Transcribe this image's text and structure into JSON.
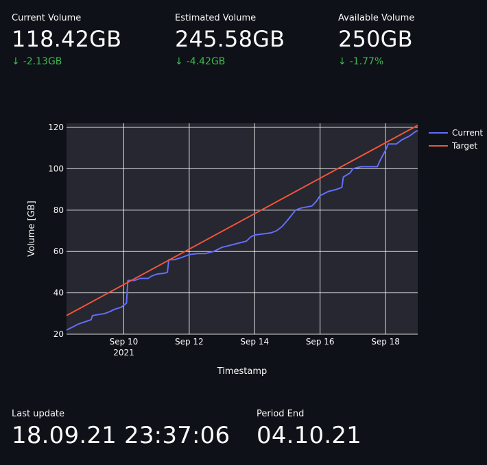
{
  "metrics": [
    {
      "label": "Current Volume",
      "value": "118.42GB",
      "delta": "-2.13GB"
    },
    {
      "label": "Estimated Volume",
      "value": "245.58GB",
      "delta": "-4.42GB"
    },
    {
      "label": "Available Volume",
      "value": "250GB",
      "delta": "-1.77%"
    }
  ],
  "footer": {
    "last_update_label": "Last update",
    "last_update_value": "18.09.21 23:37:06",
    "period_end_label": "Period End",
    "period_end_value": "04.10.21"
  },
  "colors": {
    "background": "#0e1117",
    "plot_bg": "#262730",
    "current": "#636efa",
    "target": "#ef553b",
    "delta_down": "#3fb950"
  },
  "chart_data": {
    "type": "line",
    "xlabel": "Timestamp",
    "ylabel": "Volume [GB]",
    "xlim": [
      "2021-09-08T06:00",
      "2021-09-18T23:37"
    ],
    "ylim": [
      20,
      122
    ],
    "x_ticks": [
      {
        "date": "2021-09-10",
        "label": "Sep 10",
        "sub": "2021"
      },
      {
        "date": "2021-09-12",
        "label": "Sep 12",
        "sub": ""
      },
      {
        "date": "2021-09-14",
        "label": "Sep 14",
        "sub": ""
      },
      {
        "date": "2021-09-16",
        "label": "Sep 16",
        "sub": ""
      },
      {
        "date": "2021-09-18",
        "label": "Sep 18",
        "sub": ""
      }
    ],
    "y_ticks": [
      20,
      40,
      60,
      80,
      100,
      120
    ],
    "grid": true,
    "legend_position": "top-right",
    "series": [
      {
        "name": "Current",
        "color": "#636efa",
        "points": [
          [
            "2021-09-08T06:00",
            22
          ],
          [
            "2021-09-08T15:00",
            25
          ],
          [
            "2021-09-09T00:00",
            27
          ],
          [
            "2021-09-09T01:00",
            29
          ],
          [
            "2021-09-09T10:00",
            30
          ],
          [
            "2021-09-09T14:00",
            31
          ],
          [
            "2021-09-09T17:00",
            32
          ],
          [
            "2021-09-09T22:00",
            33
          ],
          [
            "2021-09-10T00:00",
            34
          ],
          [
            "2021-09-10T02:00",
            35
          ],
          [
            "2021-09-10T03:00",
            46
          ],
          [
            "2021-09-10T08:00",
            46
          ],
          [
            "2021-09-10T12:00",
            47
          ],
          [
            "2021-09-10T18:00",
            47
          ],
          [
            "2021-09-10T20:00",
            48
          ],
          [
            "2021-09-11T00:00",
            49
          ],
          [
            "2021-09-11T06:00",
            49.5
          ],
          [
            "2021-09-11T08:00",
            50
          ],
          [
            "2021-09-11T09:00",
            56
          ],
          [
            "2021-09-11T13:00",
            56
          ],
          [
            "2021-09-11T18:00",
            57
          ],
          [
            "2021-09-11T22:00",
            58
          ],
          [
            "2021-09-12T00:00",
            58.5
          ],
          [
            "2021-09-12T06:00",
            59
          ],
          [
            "2021-09-12T12:00",
            59
          ],
          [
            "2021-09-12T18:00",
            60
          ],
          [
            "2021-09-13T00:00",
            62
          ],
          [
            "2021-09-13T12:00",
            64
          ],
          [
            "2021-09-13T18:00",
            65
          ],
          [
            "2021-09-13T21:00",
            67
          ],
          [
            "2021-09-14T00:00",
            68
          ],
          [
            "2021-09-14T12:00",
            69
          ],
          [
            "2021-09-14T16:00",
            70
          ],
          [
            "2021-09-14T20:00",
            72
          ],
          [
            "2021-09-15T00:00",
            75
          ],
          [
            "2021-09-15T06:00",
            80
          ],
          [
            "2021-09-15T10:00",
            81
          ],
          [
            "2021-09-15T18:00",
            82
          ],
          [
            "2021-09-15T21:00",
            84
          ],
          [
            "2021-09-16T00:00",
            87
          ],
          [
            "2021-09-16T06:00",
            89
          ],
          [
            "2021-09-16T12:00",
            90
          ],
          [
            "2021-09-16T16:00",
            91
          ],
          [
            "2021-09-16T17:00",
            96
          ],
          [
            "2021-09-16T22:00",
            98
          ],
          [
            "2021-09-17T00:00",
            100
          ],
          [
            "2021-09-17T06:00",
            101
          ],
          [
            "2021-09-17T18:00",
            101
          ],
          [
            "2021-09-17T20:00",
            104
          ],
          [
            "2021-09-18T00:00",
            109
          ],
          [
            "2021-09-18T02:00",
            112
          ],
          [
            "2021-09-18T06:00",
            112
          ],
          [
            "2021-09-18T08:00",
            112
          ],
          [
            "2021-09-18T12:00",
            114
          ],
          [
            "2021-09-18T18:00",
            116
          ],
          [
            "2021-09-18T22:00",
            118
          ],
          [
            "2021-09-18T23:37",
            118.4
          ]
        ]
      },
      {
        "name": "Target",
        "color": "#ef553b",
        "points": [
          [
            "2021-09-08T06:00",
            29
          ],
          [
            "2021-09-18T23:37",
            121
          ]
        ]
      }
    ]
  }
}
